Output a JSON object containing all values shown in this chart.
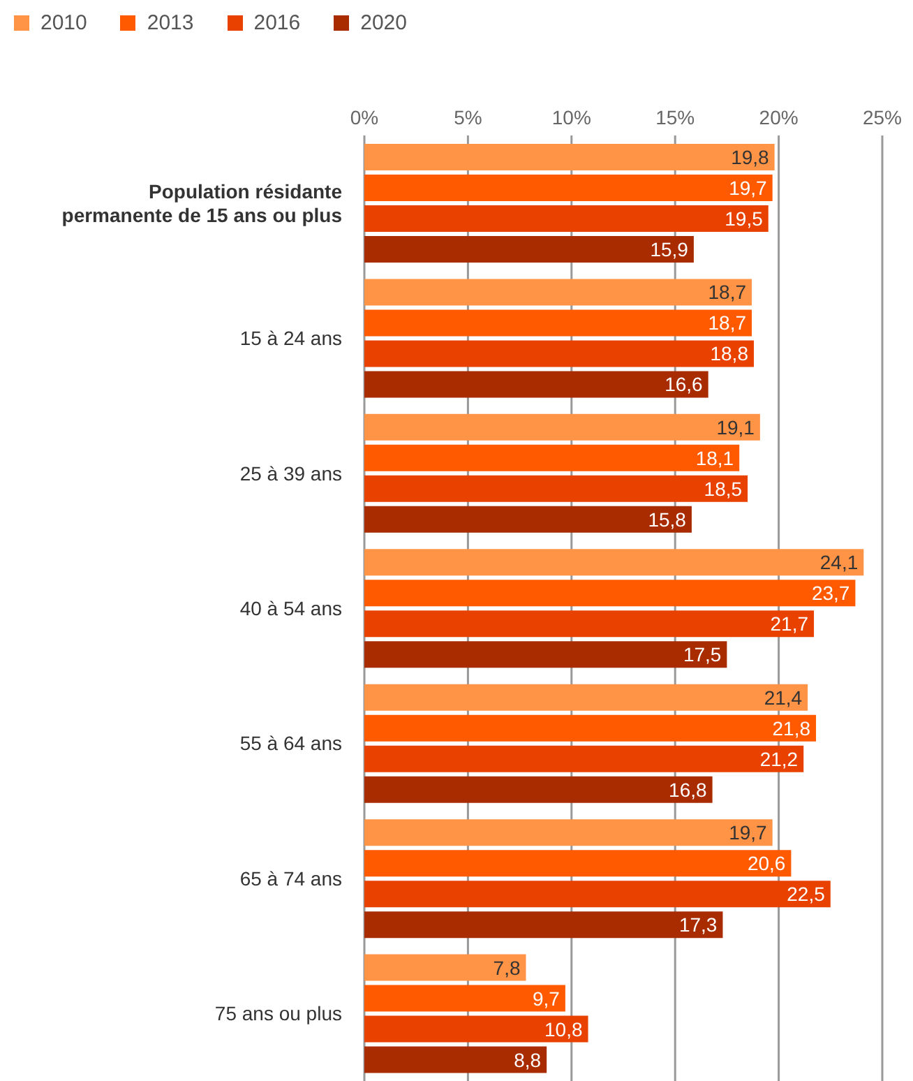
{
  "chart_data": {
    "type": "bar",
    "orientation": "horizontal",
    "categories": [
      "Population résidante permanente de 15 ans ou plus",
      "15 à 24 ans",
      "25 à 39 ans",
      "40 à 54 ans",
      "55 à 64 ans",
      "65 à 74 ans",
      "75 ans ou plus"
    ],
    "series": [
      {
        "name": "2010",
        "color": "#ff9447",
        "values": [
          19.8,
          18.7,
          19.1,
          24.1,
          21.4,
          19.7,
          7.8
        ],
        "value_labels": [
          "19,8",
          "18,7",
          "19,1",
          "24,1",
          "21,4",
          "19,7",
          "7,8"
        ]
      },
      {
        "name": "2013",
        "color": "#ff5a00",
        "values": [
          19.7,
          18.7,
          18.1,
          23.7,
          21.8,
          20.6,
          9.7
        ],
        "value_labels": [
          "19,7",
          "18,7",
          "18,1",
          "23,7",
          "21,8",
          "20,6",
          "9,7"
        ]
      },
      {
        "name": "2016",
        "color": "#e84100",
        "values": [
          19.5,
          18.8,
          18.5,
          21.7,
          21.2,
          22.5,
          10.8
        ],
        "value_labels": [
          "19,5",
          "18,8",
          "18,5",
          "21,7",
          "21,2",
          "22,5",
          "10,8"
        ]
      },
      {
        "name": "2020",
        "color": "#a82c00",
        "values": [
          15.9,
          16.6,
          15.8,
          17.5,
          16.8,
          17.3,
          8.8
        ],
        "value_labels": [
          "15,9",
          "16,6",
          "15,8",
          "17,5",
          "16,8",
          "17,3",
          "8,8"
        ]
      }
    ],
    "xlim": [
      0,
      25
    ],
    "xticks": [
      {
        "value": 0,
        "label": "0%"
      },
      {
        "value": 5,
        "label": "5%"
      },
      {
        "value": 10,
        "label": "10%"
      },
      {
        "value": 15,
        "label": "15%"
      },
      {
        "value": 20,
        "label": "20%"
      },
      {
        "value": 25,
        "label": "25%"
      }
    ],
    "grid": "x",
    "legend": "top left"
  }
}
